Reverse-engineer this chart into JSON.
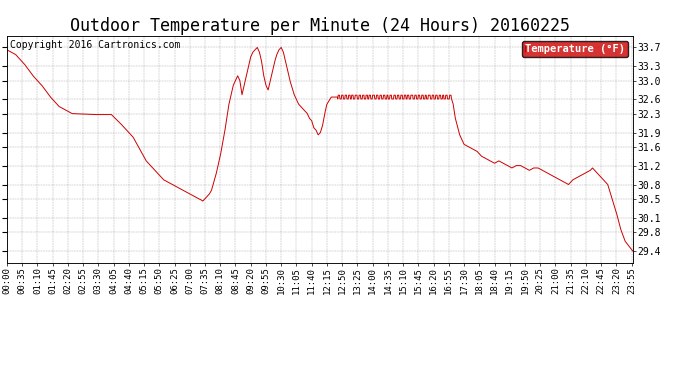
{
  "title": "Outdoor Temperature per Minute (24 Hours) 20160225",
  "copyright_text": "Copyright 2016 Cartronics.com",
  "legend_label": "Temperature (°F)",
  "line_color": "#cc0000",
  "legend_bg": "#cc0000",
  "legend_text_color": "#ffffff",
  "bg_color": "#ffffff",
  "grid_color": "#999999",
  "yticks": [
    29.4,
    29.8,
    30.1,
    30.5,
    30.8,
    31.2,
    31.6,
    31.9,
    32.3,
    32.6,
    33.0,
    33.3,
    33.7
  ],
  "ylim": [
    29.15,
    33.95
  ],
  "title_fontsize": 12,
  "axis_fontsize": 6.5,
  "copyright_fontsize": 7,
  "xtick_step": 35
}
